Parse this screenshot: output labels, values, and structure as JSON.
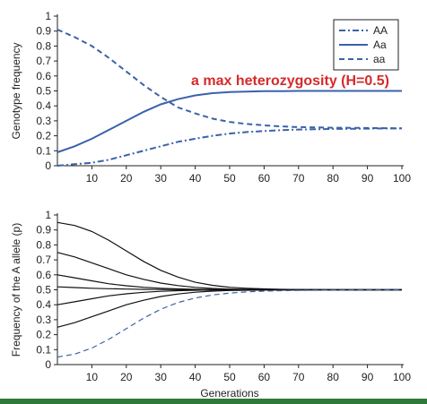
{
  "colors": {
    "series": "#3a62a8",
    "curves": "#111111",
    "axis": "#222222",
    "annotation": "#d62a2a",
    "bar": "#2f7a3a"
  },
  "annotation": "a max heterozygosity (H=0.5)",
  "chart_data": [
    {
      "type": "line",
      "ylabel": "Genotype frequency",
      "xlabel": "",
      "xlim": [
        0,
        100
      ],
      "ylim": [
        0,
        1
      ],
      "xticks": [
        10,
        20,
        30,
        40,
        50,
        60,
        70,
        80,
        90,
        100
      ],
      "yticks": [
        0,
        0.1,
        0.2,
        0.3,
        0.4,
        0.5,
        0.6,
        0.7,
        0.8,
        0.9,
        1
      ],
      "legend_position": "top-right",
      "x": [
        0,
        5,
        10,
        15,
        20,
        25,
        30,
        35,
        40,
        45,
        50,
        55,
        60,
        65,
        70,
        75,
        80,
        85,
        90,
        95,
        100
      ],
      "series": [
        {
          "name": "AA",
          "style": "dash-dot",
          "values": [
            0.0,
            0.01,
            0.02,
            0.04,
            0.07,
            0.1,
            0.13,
            0.16,
            0.18,
            0.2,
            0.215,
            0.225,
            0.232,
            0.238,
            0.242,
            0.244,
            0.246,
            0.247,
            0.248,
            0.249,
            0.25
          ]
        },
        {
          "name": "Aa",
          "style": "solid",
          "values": [
            0.09,
            0.13,
            0.18,
            0.24,
            0.3,
            0.36,
            0.41,
            0.445,
            0.47,
            0.485,
            0.492,
            0.496,
            0.498,
            0.499,
            0.5,
            0.5,
            0.5,
            0.5,
            0.5,
            0.5,
            0.5
          ]
        },
        {
          "name": "aa",
          "style": "dashed",
          "values": [
            0.91,
            0.86,
            0.8,
            0.72,
            0.63,
            0.54,
            0.46,
            0.39,
            0.35,
            0.315,
            0.293,
            0.279,
            0.27,
            0.263,
            0.258,
            0.256,
            0.254,
            0.253,
            0.252,
            0.251,
            0.25
          ]
        }
      ]
    },
    {
      "type": "line",
      "ylabel": "Frequency of the A allele (p)",
      "xlabel": "Generations",
      "xlim": [
        0,
        100
      ],
      "ylim": [
        0,
        1
      ],
      "xticks": [
        10,
        20,
        30,
        40,
        50,
        60,
        70,
        80,
        90,
        100
      ],
      "yticks": [
        0,
        0.1,
        0.2,
        0.3,
        0.4,
        0.5,
        0.6,
        0.7,
        0.8,
        0.9,
        1
      ],
      "x": [
        0,
        5,
        10,
        15,
        20,
        25,
        30,
        35,
        40,
        45,
        50,
        55,
        60,
        65,
        70,
        75,
        80,
        85,
        90,
        95,
        100
      ],
      "series": [
        {
          "style": "solid",
          "values": [
            0.95,
            0.93,
            0.89,
            0.83,
            0.76,
            0.69,
            0.63,
            0.585,
            0.55,
            0.53,
            0.517,
            0.51,
            0.506,
            0.503,
            0.502,
            0.501,
            0.5,
            0.5,
            0.5,
            0.5,
            0.5
          ]
        },
        {
          "style": "solid",
          "values": [
            0.75,
            0.72,
            0.68,
            0.64,
            0.6,
            0.57,
            0.545,
            0.528,
            0.516,
            0.509,
            0.505,
            0.503,
            0.502,
            0.501,
            0.5,
            0.5,
            0.5,
            0.5,
            0.5,
            0.5,
            0.5
          ]
        },
        {
          "style": "solid",
          "values": [
            0.6,
            0.58,
            0.56,
            0.54,
            0.527,
            0.517,
            0.51,
            0.506,
            0.503,
            0.502,
            0.501,
            0.5,
            0.5,
            0.5,
            0.5,
            0.5,
            0.5,
            0.5,
            0.5,
            0.5,
            0.5
          ]
        },
        {
          "style": "solid",
          "values": [
            0.52,
            0.515,
            0.51,
            0.507,
            0.505,
            0.503,
            0.502,
            0.501,
            0.5,
            0.5,
            0.5,
            0.5,
            0.5,
            0.5,
            0.5,
            0.5,
            0.5,
            0.5,
            0.5,
            0.5,
            0.5
          ]
        },
        {
          "style": "solid",
          "values": [
            0.4,
            0.42,
            0.44,
            0.46,
            0.473,
            0.483,
            0.49,
            0.494,
            0.497,
            0.498,
            0.499,
            0.5,
            0.5,
            0.5,
            0.5,
            0.5,
            0.5,
            0.5,
            0.5,
            0.5,
            0.5
          ]
        },
        {
          "style": "solid",
          "values": [
            0.25,
            0.28,
            0.32,
            0.36,
            0.4,
            0.43,
            0.455,
            0.472,
            0.484,
            0.491,
            0.495,
            0.497,
            0.498,
            0.499,
            0.5,
            0.5,
            0.5,
            0.5,
            0.5,
            0.5,
            0.5
          ]
        },
        {
          "style": "dashed",
          "color": "#3a62a8",
          "values": [
            0.05,
            0.07,
            0.11,
            0.17,
            0.24,
            0.31,
            0.37,
            0.415,
            0.445,
            0.465,
            0.478,
            0.486,
            0.491,
            0.494,
            0.496,
            0.497,
            0.498,
            0.499,
            0.5,
            0.5,
            0.5
          ]
        }
      ]
    }
  ]
}
